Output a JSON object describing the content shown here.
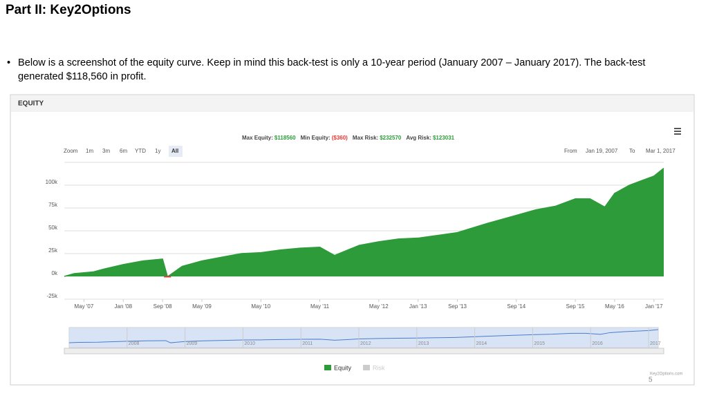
{
  "slide": {
    "title": "Part II: Key2Options",
    "bullet": "Below is a screenshot of the equity curve.  Keep in mind this back-test is only a 10-year period (January 2007 – January 2017).  The back-test generated $118,560 in profit.",
    "page_number": "5"
  },
  "chart_data": {
    "type": "area",
    "panel_title": "EQUITY",
    "stats": [
      {
        "label": "Max Equity:",
        "value": "$118560",
        "color": "#2e9b3a"
      },
      {
        "label": "Min Equity:",
        "value": "($360)",
        "color": "#e53935"
      },
      {
        "label": "Max Risk:",
        "value": "$232570",
        "color": "#2e9b3a"
      },
      {
        "label": "Avg Risk:",
        "value": "$123031",
        "color": "#2e9b3a"
      }
    ],
    "zoom": [
      "Zoom",
      "1m",
      "3m",
      "6m",
      "YTD",
      "1y",
      "All"
    ],
    "range_selector": [
      "From",
      "Jan 19, 2007",
      "To",
      "Mar 1, 2017"
    ],
    "x": [
      "2007-01",
      "2007-03",
      "2007-05",
      "2007-07",
      "2007-09",
      "2008-01",
      "2008-03",
      "2008-05",
      "2008-07",
      "2008-09",
      "2008-10",
      "2009-01",
      "2009-05",
      "2009-09",
      "2010-01",
      "2010-05",
      "2010-09",
      "2011-01",
      "2011-05",
      "2011-08",
      "2012-01",
      "2012-05",
      "2012-09",
      "2013-01",
      "2013-05",
      "2013-09",
      "2014-03",
      "2014-09",
      "2015-01",
      "2015-05",
      "2015-09",
      "2015-12",
      "2016-03",
      "2016-05",
      "2016-08",
      "2016-10",
      "2017-01",
      "2017-03"
    ],
    "series": [
      {
        "name": "Equity",
        "color": "#2e9b3a",
        "values": [
          0,
          3000,
          4000,
          5000,
          8000,
          13000,
          15000,
          17000,
          18000,
          19000,
          -360,
          11000,
          17000,
          21000,
          25000,
          26000,
          29000,
          31000,
          32000,
          23000,
          34000,
          38000,
          41000,
          42000,
          45000,
          48000,
          58000,
          67000,
          73000,
          77000,
          85000,
          85000,
          76000,
          91000,
          100000,
          104000,
          110000,
          118560
        ]
      }
    ],
    "inactive_series": [
      {
        "name": "Risk",
        "color": "#cccccc"
      }
    ],
    "xlim": [
      "2007-01",
      "2017-03"
    ],
    "xticks": [
      {
        "value": "2007-05",
        "label": "May '07"
      },
      {
        "value": "2008-01",
        "label": "Jan '08"
      },
      {
        "value": "2008-09",
        "label": "Sep '08"
      },
      {
        "value": "2009-05",
        "label": "May '09"
      },
      {
        "value": "2010-05",
        "label": "May '10"
      },
      {
        "value": "2011-05",
        "label": "May '11"
      },
      {
        "value": "2012-05",
        "label": "May '12"
      },
      {
        "value": "2013-01",
        "label": "Jan '13"
      },
      {
        "value": "2013-09",
        "label": "Sep '13"
      },
      {
        "value": "2014-09",
        "label": "Sep '14"
      },
      {
        "value": "2015-09",
        "label": "Sep '15"
      },
      {
        "value": "2016-05",
        "label": "May '16"
      },
      {
        "value": "2017-01",
        "label": "Jan '17"
      }
    ],
    "ylim": [
      -25000,
      125000
    ],
    "yticks": [
      {
        "value": -25000,
        "label": "-25k"
      },
      {
        "value": 0,
        "label": "0k"
      },
      {
        "value": 25000,
        "label": "25k"
      },
      {
        "value": 50000,
        "label": "50k"
      },
      {
        "value": 75000,
        "label": "75k"
      },
      {
        "value": 100000,
        "label": "100k"
      }
    ],
    "grid": true,
    "navigator_ticks": [
      {
        "value": "2008-01",
        "label": "2008"
      },
      {
        "value": "2009-01",
        "label": "2009"
      },
      {
        "value": "2010-01",
        "label": "2010"
      },
      {
        "value": "2011-01",
        "label": "2011"
      },
      {
        "value": "2012-01",
        "label": "2012"
      },
      {
        "value": "2013-01",
        "label": "2013"
      },
      {
        "value": "2014-01",
        "label": "2014"
      },
      {
        "value": "2015-01",
        "label": "2015"
      },
      {
        "value": "2016-01",
        "label": "2016"
      },
      {
        "value": "2017-01",
        "label": "2017"
      }
    ],
    "credit": "Key2Options.com"
  }
}
